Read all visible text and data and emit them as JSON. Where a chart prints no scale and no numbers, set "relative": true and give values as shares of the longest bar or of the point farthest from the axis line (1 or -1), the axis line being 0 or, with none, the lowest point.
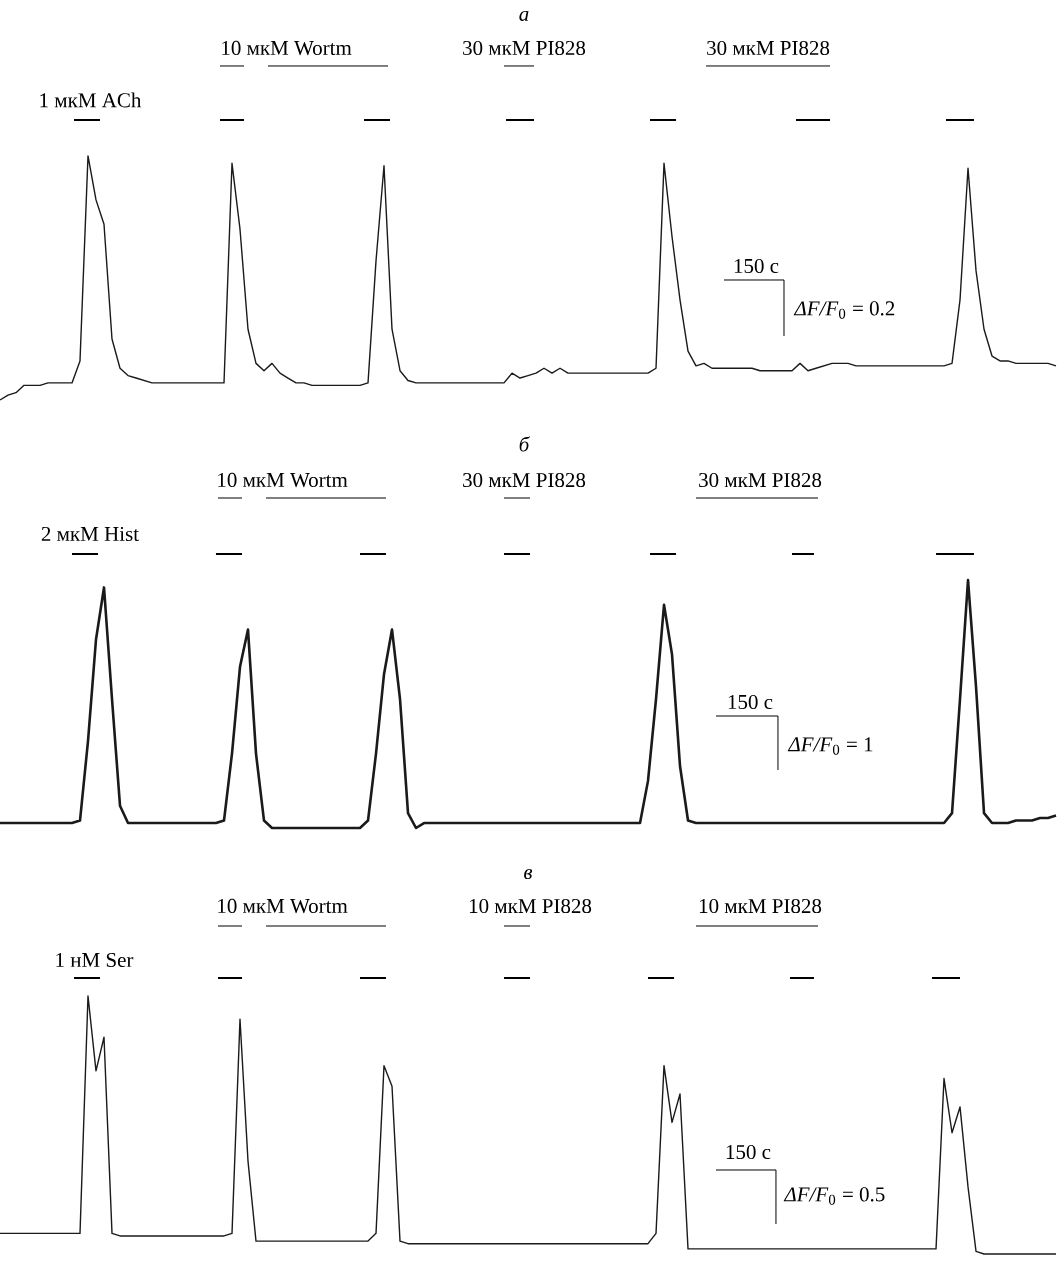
{
  "chart_data": [
    {
      "type": "line",
      "relative": true,
      "title": "а",
      "categories": [
        null,
        null,
        null,
        null,
        null,
        null,
        null,
        null,
        null,
        null,
        null,
        null,
        null,
        null,
        null,
        null,
        null,
        null,
        null,
        null,
        null,
        null,
        null,
        null,
        null,
        null,
        null,
        null,
        null,
        null,
        null,
        null,
        null,
        null,
        null,
        null,
        null,
        null,
        null,
        null,
        null,
        null,
        null,
        null,
        null,
        null,
        null,
        null,
        null,
        null,
        null,
        null,
        null,
        null,
        null,
        null,
        null,
        null,
        null,
        null,
        null,
        null,
        null,
        null,
        null,
        null,
        null,
        null,
        null,
        null,
        null,
        null,
        null,
        null,
        null,
        null,
        null,
        null,
        null,
        null,
        null,
        null,
        null,
        null,
        null,
        null,
        null,
        null,
        null,
        null,
        null,
        null,
        null,
        null,
        null,
        null,
        null,
        null,
        null,
        null,
        null,
        null,
        null,
        null,
        null,
        null,
        null,
        null,
        null,
        null,
        null,
        null,
        null,
        null,
        null,
        null,
        null,
        null,
        null,
        null,
        null,
        null,
        null,
        null,
        null,
        null,
        null,
        null,
        null,
        null,
        null,
        null,
        null
      ],
      "series": [
        {
          "color": "#1a1a1a",
          "values": [
            0,
            0.02,
            0.03,
            0.06,
            0.06,
            0.06,
            0.07,
            0.07,
            0.07,
            0.07,
            0.16,
            1,
            0.82,
            0.72,
            0.25,
            0.13,
            0.1,
            0.09,
            0.08,
            0.07,
            0.07,
            0.07,
            0.07,
            0.07,
            0.07,
            0.07,
            0.07,
            0.07,
            0.07,
            0.97,
            0.7,
            0.29,
            0.15,
            0.12,
            0.15,
            0.11,
            0.09,
            0.07,
            0.07,
            0.06,
            0.06,
            0.06,
            0.06,
            0.06,
            0.06,
            0.06,
            0.07,
            0.57,
            0.96,
            0.29,
            0.12,
            0.08,
            0.07,
            0.07,
            0.07,
            0.07,
            0.07,
            0.07,
            0.07,
            0.07,
            0.07,
            0.07,
            0.07,
            0.07,
            0.11,
            0.09,
            0.1,
            0.11,
            0.13,
            0.11,
            0.13,
            0.11,
            0.11,
            0.11,
            0.11,
            0.11,
            0.11,
            0.11,
            0.11,
            0.11,
            0.11,
            0.11,
            0.13,
            0.97,
            0.67,
            0.41,
            0.2,
            0.14,
            0.15,
            0.13,
            0.13,
            0.13,
            0.13,
            0.13,
            0.13,
            0.12,
            0.12,
            0.12,
            0.12,
            0.12,
            0.15,
            0.12,
            0.13,
            0.14,
            0.15,
            0.15,
            0.15,
            0.14,
            0.14,
            0.14,
            0.14,
            0.14,
            0.14,
            0.14,
            0.14,
            0.14,
            0.14,
            0.14,
            0.14,
            0.15,
            0.41,
            0.95,
            0.53,
            0.29,
            0.18,
            0.16,
            0.16,
            0.15,
            0.15,
            0.15,
            0.15,
            0.15,
            0.14
          ]
        }
      ],
      "annotations": [
        "10 мкМ Wortm",
        "30 мкМ PI828",
        "30 мкМ PI828",
        "1 мкМ ACh",
        "150 с",
        "*ΔF/F*$_{0}$ = 0.2"
      ]
    },
    {
      "type": "line",
      "relative": true,
      "title": "б",
      "categories": [
        null,
        null,
        null,
        null,
        null,
        null,
        null,
        null,
        null,
        null,
        null,
        null,
        null,
        null,
        null,
        null,
        null,
        null,
        null,
        null,
        null,
        null,
        null,
        null,
        null,
        null,
        null,
        null,
        null,
        null,
        null,
        null,
        null,
        null,
        null,
        null,
        null,
        null,
        null,
        null,
        null,
        null,
        null,
        null,
        null,
        null,
        null,
        null,
        null,
        null,
        null,
        null,
        null,
        null,
        null,
        null,
        null,
        null,
        null,
        null,
        null,
        null,
        null,
        null,
        null,
        null,
        null,
        null,
        null,
        null,
        null,
        null,
        null,
        null,
        null,
        null,
        null,
        null,
        null,
        null,
        null,
        null,
        null,
        null,
        null,
        null,
        null,
        null,
        null,
        null,
        null,
        null,
        null,
        null,
        null,
        null,
        null,
        null,
        null,
        null,
        null,
        null,
        null,
        null,
        null,
        null,
        null,
        null,
        null,
        null,
        null,
        null,
        null,
        null,
        null,
        null,
        null,
        null,
        null,
        null,
        null,
        null,
        null,
        null,
        null,
        null,
        null,
        null,
        null,
        null,
        null,
        null,
        null
      ],
      "series": [
        {
          "color": "#1a1a1a",
          "values": [
            0.02,
            0.02,
            0.02,
            0.02,
            0.02,
            0.02,
            0.02,
            0.02,
            0.02,
            0.02,
            0.03,
            0.35,
            0.76,
            0.97,
            0.52,
            0.09,
            0.02,
            0.02,
            0.02,
            0.02,
            0.02,
            0.02,
            0.02,
            0.02,
            0.02,
            0.02,
            0.02,
            0.02,
            0.03,
            0.3,
            0.65,
            0.8,
            0.3,
            0.03,
            0,
            0,
            0,
            0,
            0,
            0,
            0,
            0,
            0,
            0,
            0,
            0,
            0.03,
            0.3,
            0.62,
            0.8,
            0.52,
            0.06,
            0,
            0.02,
            0.02,
            0.02,
            0.02,
            0.02,
            0.02,
            0.02,
            0.02,
            0.02,
            0.02,
            0.02,
            0.02,
            0.02,
            0.02,
            0.02,
            0.02,
            0.02,
            0.02,
            0.02,
            0.02,
            0.02,
            0.02,
            0.02,
            0.02,
            0.02,
            0.02,
            0.02,
            0.02,
            0.19,
            0.52,
            0.9,
            0.7,
            0.25,
            0.03,
            0.02,
            0.02,
            0.02,
            0.02,
            0.02,
            0.02,
            0.02,
            0.02,
            0.02,
            0.02,
            0.02,
            0.02,
            0.02,
            0.02,
            0.02,
            0.02,
            0.02,
            0.02,
            0.02,
            0.02,
            0.02,
            0.02,
            0.02,
            0.02,
            0.02,
            0.02,
            0.02,
            0.02,
            0.02,
            0.02,
            0.02,
            0.02,
            0.06,
            0.52,
            1,
            0.57,
            0.06,
            0.02,
            0.02,
            0.02,
            0.03,
            0.03,
            0.03,
            0.04,
            0.04,
            0.05
          ]
        }
      ],
      "annotations": [
        "10 мкМ Wortm",
        "30 мкМ PI828",
        "30 мкМ PI828",
        "2 мкМ Hist",
        "150 с",
        "*ΔF/F*$_{0}$ = 1"
      ]
    },
    {
      "type": "line",
      "relative": true,
      "title": "в",
      "categories": [
        null,
        null,
        null,
        null,
        null,
        null,
        null,
        null,
        null,
        null,
        null,
        null,
        null,
        null,
        null,
        null,
        null,
        null,
        null,
        null,
        null,
        null,
        null,
        null,
        null,
        null,
        null,
        null,
        null,
        null,
        null,
        null,
        null,
        null,
        null,
        null,
        null,
        null,
        null,
        null,
        null,
        null,
        null,
        null,
        null,
        null,
        null,
        null,
        null,
        null,
        null,
        null,
        null,
        null,
        null,
        null,
        null,
        null,
        null,
        null,
        null,
        null,
        null,
        null,
        null,
        null,
        null,
        null,
        null,
        null,
        null,
        null,
        null,
        null,
        null,
        null,
        null,
        null,
        null,
        null,
        null,
        null,
        null,
        null,
        null,
        null,
        null,
        null,
        null,
        null,
        null,
        null,
        null,
        null,
        null,
        null,
        null,
        null,
        null,
        null,
        null,
        null,
        null,
        null,
        null,
        null,
        null,
        null,
        null,
        null,
        null,
        null,
        null,
        null,
        null,
        null,
        null,
        null,
        null,
        null,
        null,
        null,
        null,
        null,
        null,
        null,
        null,
        null,
        null,
        null,
        null,
        null,
        null
      ],
      "series": [
        {
          "color": "#1a1a1a",
          "values": [
            0.08,
            0.08,
            0.08,
            0.08,
            0.08,
            0.08,
            0.08,
            0.08,
            0.08,
            0.08,
            0.08,
            1,
            0.71,
            0.84,
            0.08,
            0.07,
            0.07,
            0.07,
            0.07,
            0.07,
            0.07,
            0.07,
            0.07,
            0.07,
            0.07,
            0.07,
            0.07,
            0.07,
            0.07,
            0.08,
            0.91,
            0.36,
            0.05,
            0.05,
            0.05,
            0.05,
            0.05,
            0.05,
            0.05,
            0.05,
            0.05,
            0.05,
            0.05,
            0.05,
            0.05,
            0.05,
            0.05,
            0.08,
            0.73,
            0.65,
            0.05,
            0.04,
            0.04,
            0.04,
            0.04,
            0.04,
            0.04,
            0.04,
            0.04,
            0.04,
            0.04,
            0.04,
            0.04,
            0.04,
            0.04,
            0.04,
            0.04,
            0.04,
            0.04,
            0.04,
            0.04,
            0.04,
            0.04,
            0.04,
            0.04,
            0.04,
            0.04,
            0.04,
            0.04,
            0.04,
            0.04,
            0.04,
            0.08,
            0.73,
            0.51,
            0.62,
            0.02,
            0.02,
            0.02,
            0.02,
            0.02,
            0.02,
            0.02,
            0.02,
            0.02,
            0.02,
            0.02,
            0.02,
            0.02,
            0.02,
            0.02,
            0.02,
            0.02,
            0.02,
            0.02,
            0.02,
            0.02,
            0.02,
            0.02,
            0.02,
            0.02,
            0.02,
            0.02,
            0.02,
            0.02,
            0.02,
            0.02,
            0.02,
            0.68,
            0.47,
            0.57,
            0.26,
            0.01,
            0,
            0,
            0,
            0,
            0,
            0,
            0,
            0,
            0,
            0
          ]
        }
      ],
      "annotations": [
        "10 мкМ Wortm",
        "10 мкМ PI828",
        "10 мкМ PI828",
        "1 нМ Ser",
        "150 с",
        "*ΔF/F*$_{0}$ = 0.5"
      ]
    }
  ]
}
